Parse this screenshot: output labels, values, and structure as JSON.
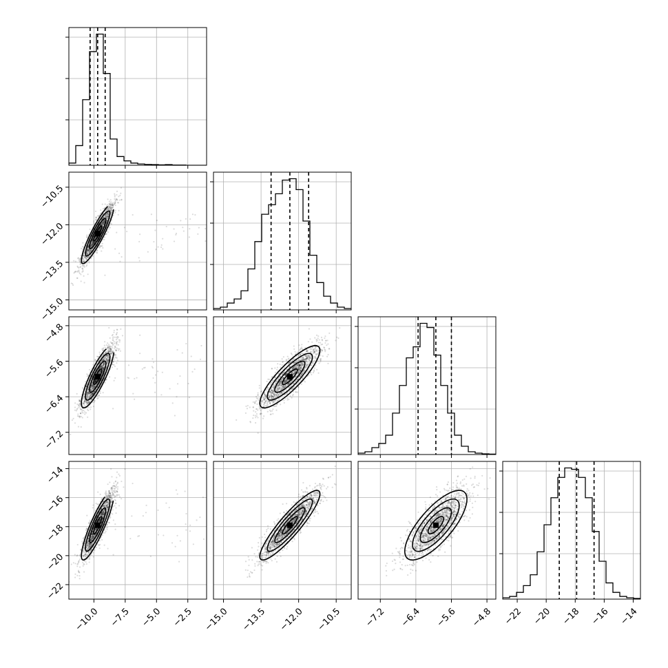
{
  "chart_data": {
    "type": "corner",
    "n_params": 4,
    "grid": true,
    "parameters": [
      {
        "range": [
          -12.0,
          -1.0
        ],
        "ticks": [
          -10.0,
          -7.5,
          -5.0,
          -2.5
        ],
        "tick_labels": [
          "−10.0",
          "−7.5",
          "−5.0",
          "−2.5"
        ],
        "mean": -9.7,
        "sd": 0.65,
        "quantiles": [
          -10.3,
          -9.7,
          -9.1
        ],
        "hist_counts": [
          1,
          9,
          30,
          52,
          60,
          42,
          12,
          4,
          2,
          1,
          0.6,
          0.4,
          0.3,
          0.2,
          0.3,
          0.1,
          0.1,
          0,
          0,
          0
        ]
      },
      {
        "range": [
          -15.4,
          -9.9
        ],
        "ticks": [
          -15.0,
          -13.5,
          -12.0,
          -10.5
        ],
        "tick_labels": [
          "−15.0",
          "−13.5",
          "−12.0",
          "−10.5"
        ],
        "mean": -12.35,
        "sd": 0.6,
        "quantiles": [
          -13.1,
          -12.35,
          -11.6
        ],
        "hist_counts": [
          1,
          2,
          5,
          8,
          14,
          30,
          50,
          70,
          77,
          85,
          95,
          96,
          88,
          65,
          40,
          20,
          10,
          5,
          2,
          1
        ]
      },
      {
        "range": [
          -7.7,
          -4.6
        ],
        "ticks": [
          -7.2,
          -6.4,
          -5.6,
          -4.8
        ],
        "tick_labels": [
          "−7.2",
          "−6.4",
          "−5.6",
          "−4.8"
        ],
        "mean": -5.95,
        "sd": 0.35,
        "quantiles": [
          -6.35,
          -5.95,
          -5.6
        ],
        "hist_counts": [
          1,
          2,
          5,
          8,
          14,
          30,
          50,
          70,
          78,
          95,
          92,
          72,
          50,
          30,
          14,
          6,
          2,
          1,
          0.5,
          0.3
        ]
      },
      {
        "range": [
          -23.0,
          -13.5
        ],
        "ticks": [
          -22,
          -20,
          -18,
          -16,
          -14
        ],
        "tick_labels": [
          "−22",
          "−20",
          "−18",
          "−16",
          "−14"
        ],
        "mean": -17.9,
        "sd": 1.2,
        "quantiles": [
          -19.1,
          -17.9,
          -16.7
        ],
        "hist_counts": [
          1,
          2,
          5,
          10,
          18,
          35,
          55,
          75,
          90,
          97,
          96,
          90,
          75,
          50,
          28,
          12,
          5,
          2,
          1,
          0.5
        ]
      }
    ],
    "correlations": [
      [
        1,
        0.9,
        0.85,
        0.88
      ],
      [
        0.9,
        1,
        0.85,
        0.9
      ],
      [
        0.85,
        0.85,
        1,
        0.75
      ],
      [
        0.88,
        0.9,
        0.75,
        1
      ]
    ],
    "outlier_fraction": 0.03,
    "contour_levels_sigma": [
      0.5,
      1.0,
      1.5,
      2.0
    ]
  }
}
